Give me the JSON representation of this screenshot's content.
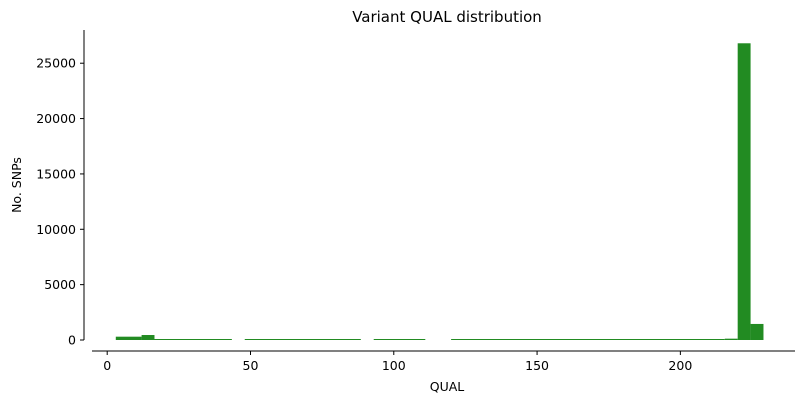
{
  "chart_data": {
    "type": "bar",
    "title": "Variant QUAL distribution",
    "xlabel": "QUAL",
    "ylabel": "No. SNPs",
    "xlim": [
      -6,
      240
    ],
    "ylim": [
      0,
      28000
    ],
    "xticks": [
      0,
      50,
      100,
      150,
      200
    ],
    "yticks": [
      0,
      5000,
      10000,
      15000,
      20000,
      25000
    ],
    "bar_color": "#228b22",
    "grid": false,
    "bins": [
      {
        "x0": 3,
        "x1": 12,
        "value": 300
      },
      {
        "x0": 12,
        "x1": 16.5,
        "value": 450
      },
      {
        "x0": 16.5,
        "x1": 43.5,
        "value": 80
      },
      {
        "x0": 48,
        "x1": 88.5,
        "value": 80
      },
      {
        "x0": 93,
        "x1": 111,
        "value": 80
      },
      {
        "x0": 120,
        "x1": 215.5,
        "value": 80
      },
      {
        "x0": 215.5,
        "x1": 220,
        "value": 120
      },
      {
        "x0": 220,
        "x1": 224.5,
        "value": 26800
      },
      {
        "x0": 224.5,
        "x1": 229,
        "value": 1450
      }
    ]
  }
}
